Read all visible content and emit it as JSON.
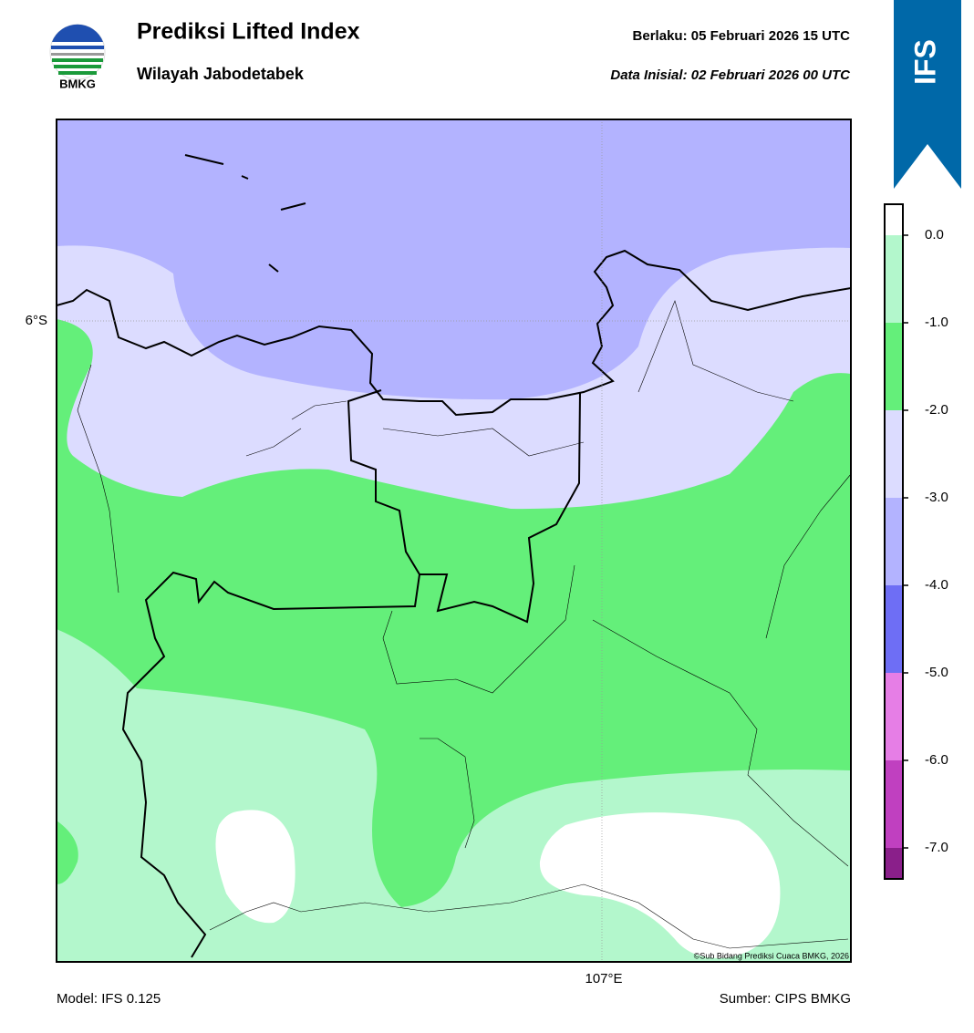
{
  "header": {
    "title": "Prediksi Lifted Index",
    "subtitle": "Wilayah Jabodetabek",
    "logo_text": "BMKG",
    "valid": "Berlaku:  05 Februari 2026 15 UTC",
    "init": "Data Inisial:  02 Februari 2026 00 UTC",
    "badge": "IFS"
  },
  "map": {
    "lat_label": "6°S",
    "lon_label": "107°E",
    "credit": "©Sub Bidang Prediksi Cuaca BMKG, 2026"
  },
  "colorbar": {
    "labels": [
      "0.0",
      "-1.0",
      "-2.0",
      "-3.0",
      "-4.0",
      "-5.0",
      "-6.0",
      "-7.0"
    ],
    "colors": [
      "#ffffff",
      "#b3f7cc",
      "#64ef7a",
      "#dcdcff",
      "#b3b3ff",
      "#6e6ef5",
      "#e67ee6",
      "#c040c0",
      "#8a1f8a"
    ]
  },
  "footer": {
    "model": "Model: IFS 0.125",
    "source": "Sumber: CIPS BMKG"
  }
}
